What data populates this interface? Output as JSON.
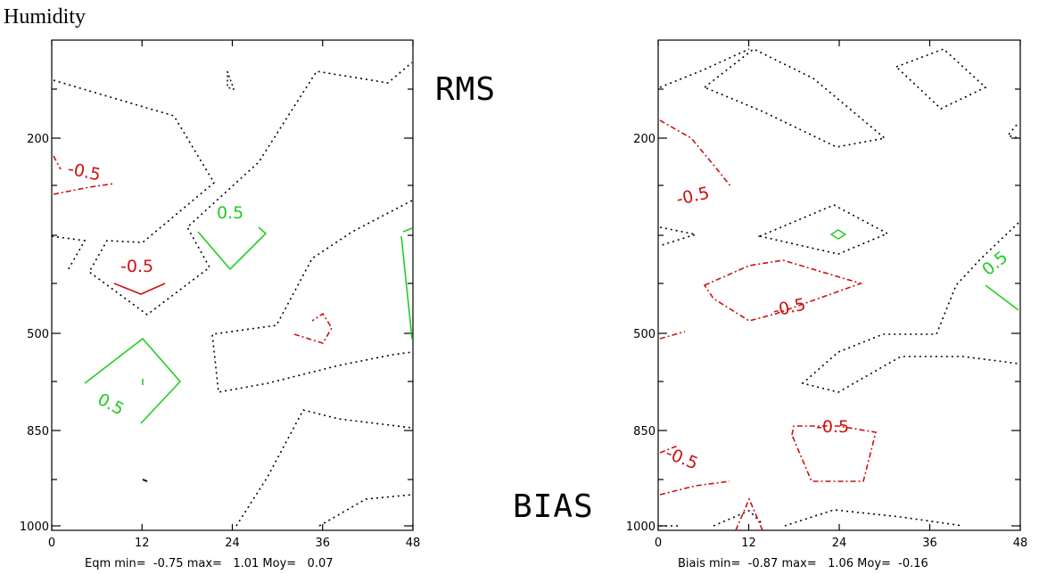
{
  "page": {
    "title": "Humidity"
  },
  "labels": {
    "rms": "RMS",
    "bias": "BIAS"
  },
  "colors": {
    "positive": "#22cc22",
    "negative": "#cc1111",
    "zero": "#000000",
    "axes": "#000000"
  },
  "chart_data": [
    {
      "type": "contour",
      "x_ticks": [
        "0",
        "12",
        "24",
        "36",
        "48"
      ],
      "y_ticks": [
        "200",
        "500",
        "850",
        "1000"
      ],
      "xlim": [
        0,
        48
      ],
      "stats": "Eqm min=  -0.75 max=   1.01 Moy=   0.07",
      "contour_labels": [
        {
          "text": "-0.5",
          "level": -0.5
        },
        {
          "text": "0.5",
          "level": 0.5
        },
        {
          "text": "-0.5",
          "level": -0.5
        },
        {
          "text": "0.5",
          "level": 0.5
        }
      ]
    },
    {
      "type": "contour",
      "x_ticks": [
        "0",
        "12",
        "24",
        "36",
        "48"
      ],
      "y_ticks": [
        "200",
        "500",
        "850",
        "1000"
      ],
      "xlim": [
        0,
        48
      ],
      "stats": "Biais min=  -0.87 max=   1.06 Moy=  -0.16",
      "contour_labels": [
        {
          "text": "-0.5",
          "level": -0.5
        },
        {
          "text": "0.5",
          "level": 0.5
        },
        {
          "text": "-0.5",
          "level": -0.5
        },
        {
          "text": "-0.5",
          "level": -0.5
        },
        {
          "text": "-0.5",
          "level": -0.5
        }
      ]
    }
  ]
}
